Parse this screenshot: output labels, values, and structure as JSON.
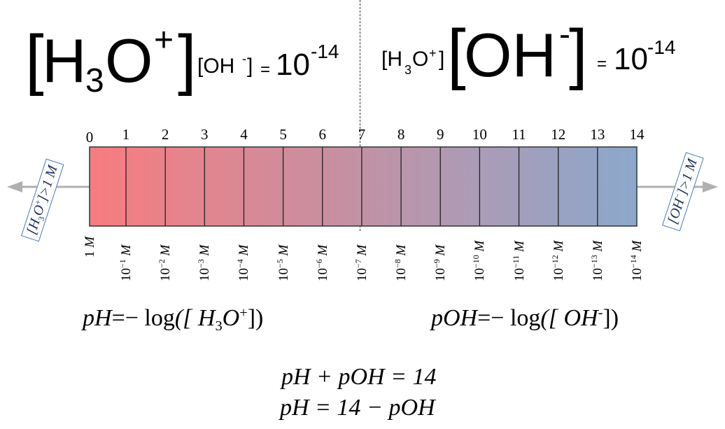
{
  "top_left": {
    "big_species": "H",
    "big_sub": "3",
    "big_tail": "O",
    "big_charge": "+",
    "small_species": "[OH",
    "small_charge": "-",
    "small_close": "]",
    "equals": "=",
    "base": "10",
    "exponent": "-14"
  },
  "top_right": {
    "small_species": "[H",
    "small_sub": "3",
    "small_tail": "O",
    "small_charge": "+",
    "small_close": "]",
    "big_species": "OH",
    "big_charge": "-",
    "equals": "=",
    "base": "10",
    "exponent": "-14"
  },
  "scale": {
    "ph_labels": [
      "0",
      "1",
      "2",
      "3",
      "4",
      "5",
      "6",
      "7",
      "8",
      "9",
      "10",
      "11",
      "12",
      "13",
      "14"
    ],
    "conc_labels": [
      {
        "base": "1",
        "exp": "",
        "unit": "M"
      },
      {
        "base": "10",
        "exp": "−1",
        "unit": "M"
      },
      {
        "base": "10",
        "exp": "−2",
        "unit": "M"
      },
      {
        "base": "10",
        "exp": "−3",
        "unit": "M"
      },
      {
        "base": "10",
        "exp": "−4",
        "unit": "M"
      },
      {
        "base": "10",
        "exp": "−5",
        "unit": "M"
      },
      {
        "base": "10",
        "exp": "−6",
        "unit": "M"
      },
      {
        "base": "10",
        "exp": "−7",
        "unit": "M"
      },
      {
        "base": "10",
        "exp": "−8",
        "unit": "M"
      },
      {
        "base": "10",
        "exp": "−9",
        "unit": "M"
      },
      {
        "base": "10",
        "exp": "−10",
        "unit": "M"
      },
      {
        "base": "10",
        "exp": "−11",
        "unit": "M"
      },
      {
        "base": "10",
        "exp": "−12",
        "unit": "M"
      },
      {
        "base": "10",
        "exp": "−13",
        "unit": "M"
      },
      {
        "base": "10",
        "exp": "−14",
        "unit": "M"
      }
    ],
    "color_acid": "#f87c7f",
    "color_base": "#8ba8cc",
    "arrow_color": "#b0b0b0",
    "box_border": "#4a7ab8"
  },
  "left_box": {
    "open": "[H",
    "sub": "3",
    "tail": "O",
    "charge": "+",
    "close": "]>1 M"
  },
  "right_box": {
    "open": "[OH",
    "charge": "−",
    "close": "]>1 M"
  },
  "formulas": {
    "ph_lhs": "pH",
    "ph_rhs_prefix": "=− log",
    "ph_arg_open": "([ H",
    "ph_arg_sub": "3",
    "ph_arg_tail": "O",
    "ph_arg_charge": "+",
    "ph_arg_close": "])",
    "poh_lhs": "pOH",
    "poh_rhs_prefix": "=− log",
    "poh_arg_open": "([ OH",
    "poh_arg_charge": "-",
    "poh_arg_close": "])",
    "sum_line": "pH + pOH = 14",
    "rearranged_line": "pH = 14 − pOH"
  }
}
